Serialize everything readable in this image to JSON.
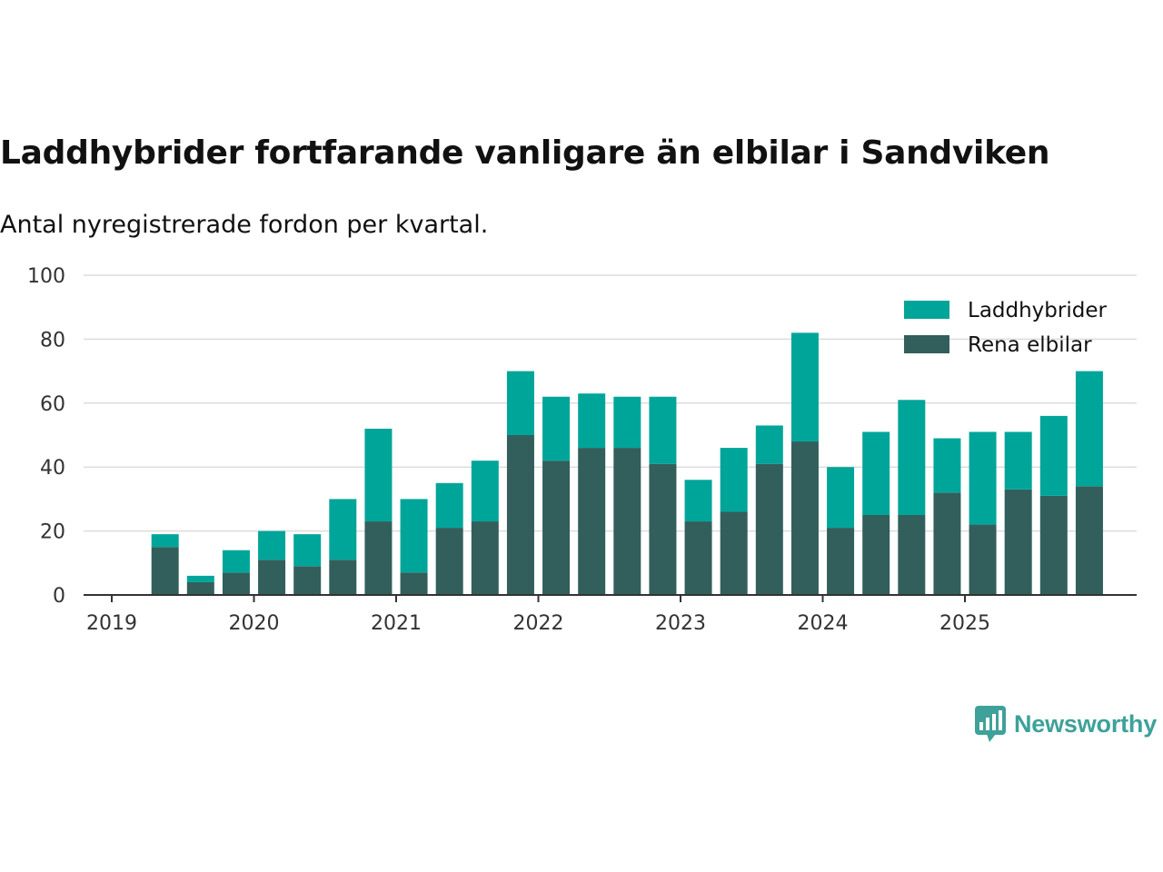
{
  "title": "Laddhybrider fortfarande vanligare än elbilar i Sandviken",
  "subtitle": "Antal nyregistrerade fordon per kvartal.",
  "brand": {
    "name": "Newsworthy"
  },
  "colors": {
    "laddhybrider": "#00a59a",
    "rena_elbilar": "#325f5b",
    "grid": "#dcdcdc",
    "axis": "#333333",
    "brand": "#3ea19a"
  },
  "chart_data": {
    "type": "bar",
    "stacked": true,
    "x_unit": "quarter",
    "categories": [
      "2019 Q2",
      "2019 Q3",
      "2019 Q4",
      "2020 Q1",
      "2020 Q2",
      "2020 Q3",
      "2020 Q4",
      "2021 Q1",
      "2021 Q2",
      "2021 Q3",
      "2021 Q4",
      "2022 Q1",
      "2022 Q2",
      "2022 Q3",
      "2022 Q4",
      "2023 Q1",
      "2023 Q2",
      "2023 Q3",
      "2023 Q4",
      "2024 Q1",
      "2024 Q2",
      "2024 Q3",
      "2024 Q4",
      "2025 Q1",
      "2025 Q2",
      "2025 Q3",
      "2025 Q4"
    ],
    "series": [
      {
        "name": "Rena elbilar",
        "values": [
          15,
          4,
          7,
          11,
          9,
          11,
          23,
          7,
          21,
          23,
          50,
          42,
          46,
          46,
          41,
          23,
          26,
          41,
          48,
          21,
          25,
          25,
          32,
          22,
          33,
          31,
          34
        ]
      },
      {
        "name": "Laddhybrider",
        "values": [
          4,
          2,
          7,
          9,
          10,
          19,
          29,
          23,
          14,
          19,
          20,
          20,
          17,
          16,
          21,
          13,
          20,
          12,
          34,
          19,
          26,
          36,
          17,
          29,
          18,
          25,
          36
        ]
      }
    ],
    "totals": [
      19,
      6,
      14,
      20,
      19,
      30,
      52,
      30,
      35,
      42,
      70,
      62,
      63,
      62,
      62,
      36,
      46,
      53,
      82,
      40,
      51,
      61,
      49,
      51,
      51,
      56,
      70
    ],
    "xticks": [
      "2019",
      "2020",
      "2021",
      "2022",
      "2023",
      "2024",
      "2025"
    ],
    "yticks": [
      "0",
      "20",
      "40",
      "60",
      "80",
      "100"
    ],
    "ylim": [
      0,
      100
    ],
    "legend": [
      "Laddhybrider",
      "Rena elbilar"
    ],
    "legend_position": "top-right",
    "grid": true
  }
}
